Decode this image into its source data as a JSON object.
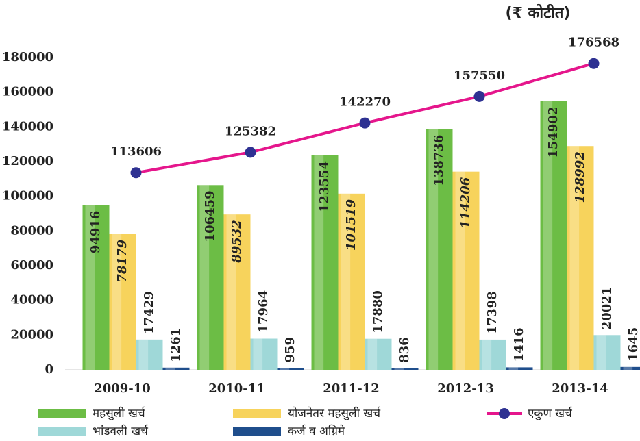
{
  "chart_data": {
    "type": "bar",
    "unit": "(₹ कोटीत)",
    "categories": [
      "2009-10",
      "2010-11",
      "2011-12",
      "2012-13",
      "2013-14"
    ],
    "series": [
      {
        "name": "महसुली खर्च",
        "color": "#6cbd45",
        "values": [
          94916,
          106459,
          123554,
          138736,
          154902
        ]
      },
      {
        "name": "योजनेतर महसुली खर्च",
        "color": "#f7d35c",
        "values": [
          78179,
          89532,
          101519,
          114206,
          128992
        ]
      },
      {
        "name": "भांडवली खर्च",
        "color": "#9fd8d8",
        "values": [
          17429,
          17964,
          17880,
          17398,
          20021
        ]
      },
      {
        "name": "कर्ज व अग्रिमे",
        "color": "#1f4e8c",
        "values": [
          1261,
          959,
          836,
          1416,
          1645
        ]
      },
      {
        "name": "एकुण खर्च",
        "type": "line",
        "color": "#e5168c",
        "marker_color": "#2e3192",
        "values": [
          113606,
          125382,
          142270,
          157550,
          176568
        ]
      }
    ],
    "ylim": [
      0,
      180000
    ],
    "yticks": [
      0,
      20000,
      40000,
      60000,
      80000,
      100000,
      120000,
      140000,
      160000,
      180000
    ]
  }
}
